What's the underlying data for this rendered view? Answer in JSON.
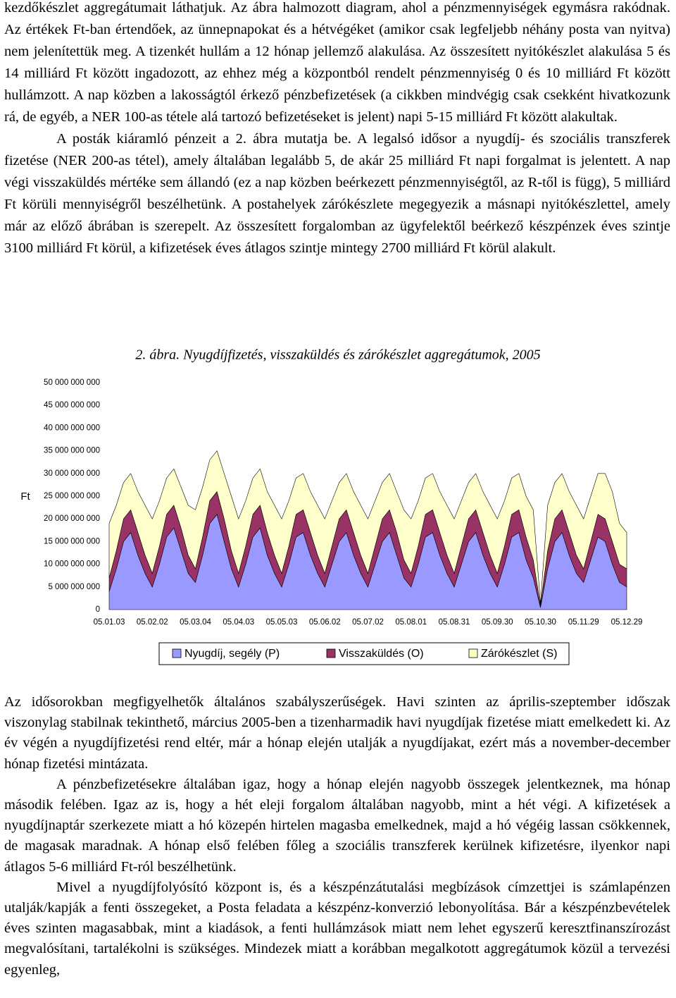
{
  "top_paragraphs": [
    "kezdőkészlet aggregátumait láthatjuk. Az ábra halmozott diagram, ahol a pénzmennyiségek egymásra rakódnak. Az értékek Ft-ban értendőek, az ünnepnapokat és a hétvégéket (amikor csak legfeljebb néhány posta van nyitva) nem jelenítettük meg. A tizenkét hullám a 12 hónap jellemző alakulása. Az összesített nyitókészlet alakulása 5 és 14 milliárd Ft között ingadozott, az ehhez még a központból rendelt pénzmennyiség 0 és 10 milliárd Ft között hullámzott. A nap közben a lakosságtól érkező pénzbefizetések (a cikkben mindvégig csak csekként hivatkozunk rá, de egyéb, a NER 100-as tétele alá tartozó befizetéseket is jelent) napi 5-15 milliárd Ft között alakultak.",
    "A posták kiáramló pénzeit a 2. ábra mutatja be. A legalsó idősor a nyugdíj- és szociális transzferek fizetése (NER 200-as tétel), amely általában legalább 5, de akár 25 milliárd Ft napi forgalmat is jelentett. A nap végi visszaküldés mértéke sem állandó (ez a nap közben beérkezett pénzmennyiségtől, az R-től is függ), 5 milliárd Ft körüli mennyiségről beszélhetünk. A postahelyek zárókészlete megegyezik a másnapi nyitókészlettel, amely már az előző ábrában is szerepelt. Az összesített forgalomban az ügyfelektől beérkező készpénzek éves szintje 3100 milliárd Ft körül, a kifizetések éves átlagos szintje mintegy 2700 milliárd Ft körül alakult."
  ],
  "chart_data": {
    "type": "stacked_area",
    "title": "2. ábra. Nyugdíjfizetés, visszaküldés és zárókészlet aggregátumok, 2005",
    "y_label": "Ft",
    "categories": [
      "05.01.03",
      null,
      null,
      null,
      null,
      null,
      "05.02.02",
      null,
      null,
      null,
      null,
      null,
      "05.03.04",
      null,
      null,
      null,
      null,
      null,
      "05.04.03",
      null,
      null,
      null,
      null,
      null,
      "05.05.03",
      null,
      null,
      null,
      null,
      null,
      "05.06.02",
      null,
      null,
      null,
      null,
      null,
      "05.07.02",
      null,
      null,
      null,
      null,
      null,
      "05.08.01",
      null,
      null,
      null,
      null,
      null,
      "05.08.31",
      null,
      null,
      null,
      null,
      null,
      "05.09.30",
      null,
      null,
      null,
      null,
      null,
      "05.10.30",
      null,
      null,
      null,
      null,
      null,
      "05.11.29",
      null,
      null,
      null,
      null,
      null,
      "05.12.29"
    ],
    "series": [
      {
        "name": "Nyugdíj, segély (P)",
        "color": "#9999ff",
        "values": [
          4000000000.0,
          9000000000.0,
          15000000000.0,
          17000000000.0,
          12000000000.0,
          8000000000.0,
          5000000000.0,
          10000000000.0,
          16000000000.0,
          18000000000.0,
          13000000000.0,
          8000000000.0,
          6000000000.0,
          12000000000.0,
          19000000000.0,
          21000000000.0,
          15000000000.0,
          9000000000.0,
          5000000000.0,
          10000000000.0,
          16000000000.0,
          18000000000.0,
          12000000000.0,
          8000000000.0,
          5000000000.0,
          10000000000.0,
          16000000000.0,
          17000000000.0,
          12000000000.0,
          8000000000.0,
          5000000000.0,
          10000000000.0,
          15000000000.0,
          17000000000.0,
          12000000000.0,
          8000000000.0,
          5000000000.0,
          10000000000.0,
          15000000000.0,
          17000000000.0,
          12000000000.0,
          7000000000.0,
          5000000000.0,
          10000000000.0,
          16000000000.0,
          17000000000.0,
          12000000000.0,
          8000000000.0,
          5000000000.0,
          10000000000.0,
          15000000000.0,
          17000000000.0,
          12000000000.0,
          8000000000.0,
          5000000000.0,
          10000000000.0,
          16000000000.0,
          17000000000.0,
          11000000000.0,
          7000000000.0,
          500000000.0,
          9000000000.0,
          15000000000.0,
          17000000000.0,
          12000000000.0,
          8000000000.0,
          6000000000.0,
          11000000000.0,
          16000000000.0,
          15000000000.0,
          10000000000.0,
          6000000000.0,
          5000000000.0
        ]
      },
      {
        "name": "Visszaküldés (O)",
        "color": "#993366",
        "values": [
          3000000000.0,
          4000000000.0,
          5000000000.0,
          5000000000.0,
          5000000000.0,
          4000000000.0,
          3000000000.0,
          4000000000.0,
          5000000000.0,
          5000000000.0,
          5000000000.0,
          4000000000.0,
          3000000000.0,
          4000000000.0,
          5000000000.0,
          5000000000.0,
          5000000000.0,
          4000000000.0,
          3000000000.0,
          4000000000.0,
          5000000000.0,
          5000000000.0,
          5000000000.0,
          4000000000.0,
          3000000000.0,
          4000000000.0,
          5000000000.0,
          5000000000.0,
          5000000000.0,
          4000000000.0,
          3000000000.0,
          4000000000.0,
          5000000000.0,
          5000000000.0,
          5000000000.0,
          4000000000.0,
          3000000000.0,
          4000000000.0,
          5000000000.0,
          5000000000.0,
          5000000000.0,
          4000000000.0,
          3000000000.0,
          4000000000.0,
          5000000000.0,
          5000000000.0,
          5000000000.0,
          4000000000.0,
          3000000000.0,
          4000000000.0,
          5000000000.0,
          5000000000.0,
          5000000000.0,
          4000000000.0,
          3000000000.0,
          4000000000.0,
          5000000000.0,
          5000000000.0,
          5000000000.0,
          4000000000.0,
          300000000.0,
          4000000000.0,
          5000000000.0,
          5000000000.0,
          5000000000.0,
          4000000000.0,
          3000000000.0,
          4000000000.0,
          5000000000.0,
          5000000000.0,
          5000000000.0,
          4000000000.0,
          4000000000.0
        ]
      },
      {
        "name": "Zárókészlet (S)",
        "color": "#ffffcc",
        "values": [
          12000000000.0,
          10000000000.0,
          8000000000.0,
          8000000000.0,
          9000000000.0,
          11000000000.0,
          12000000000.0,
          10000000000.0,
          8000000000.0,
          8000000000.0,
          9000000000.0,
          11000000000.0,
          13000000000.0,
          11000000000.0,
          9000000000.0,
          9000000000.0,
          10000000000.0,
          12000000000.0,
          12000000000.0,
          10000000000.0,
          8000000000.0,
          8000000000.0,
          9000000000.0,
          11000000000.0,
          12000000000.0,
          10000000000.0,
          8000000000.0,
          8000000000.0,
          9000000000.0,
          11000000000.0,
          12000000000.0,
          10000000000.0,
          8000000000.0,
          8000000000.0,
          9000000000.0,
          11000000000.0,
          12000000000.0,
          10000000000.0,
          8000000000.0,
          8000000000.0,
          9000000000.0,
          11000000000.0,
          12000000000.0,
          10000000000.0,
          8000000000.0,
          8000000000.0,
          9000000000.0,
          11000000000.0,
          12000000000.0,
          10000000000.0,
          8000000000.0,
          8000000000.0,
          9000000000.0,
          11000000000.0,
          12000000000.0,
          10000000000.0,
          8000000000.0,
          8000000000.0,
          9000000000.0,
          11000000000.0,
          500000000.0,
          10000000000.0,
          8000000000.0,
          8000000000.0,
          9000000000.0,
          11000000000.0,
          11000000000.0,
          10000000000.0,
          9000000000.0,
          10000000000.0,
          11000000000.0,
          9000000000.0,
          8000000000.0
        ]
      }
    ],
    "ylim": [
      0,
      50000000000
    ],
    "yticks": [
      0,
      {
        "value": 5000000000,
        "label": "5 000 000 000"
      },
      {
        "value": 10000000000,
        "label": "10 000 000 000"
      },
      {
        "value": 15000000000,
        "label": "15 000 000 000"
      },
      {
        "value": 20000000000,
        "label": "20 000 000 000"
      },
      {
        "value": 25000000000,
        "label": "25 000 000 000"
      },
      {
        "value": 30000000000,
        "label": "30 000 000 000"
      },
      {
        "value": 35000000000,
        "label": "35 000 000 000"
      },
      {
        "value": 40000000000,
        "label": "40 000 000 000"
      },
      {
        "value": 45000000000,
        "label": "45 000 000 000"
      },
      {
        "value": 50000000000,
        "label": "50 000 000 000"
      }
    ],
    "legend": "bottom"
  },
  "bottom_paragraphs": [
    "Az idősorokban megfigyelhetők általános szabályszerűségek. Havi szinten az április-szeptember időszak viszonylag stabilnak tekinthető, március 2005-ben a tizenharmadik havi nyugdíjak fizetése miatt emelkedett ki. Az év végén a nyugdíjfizetési rend eltér, már a hónap elején utalják a nyugdíjakat, ezért más a november-december hónap fizetési mintázata.",
    "A pénzbefizetésekre általában igaz, hogy a hónap elején nagyobb összegek jelentkeznek, ma hónap második felében. Igaz az is, hogy a hét eleji forgalom általában nagyobb, mint a hét végi. A kifizetések a nyugdíjnaptár szerkezete miatt a hó közepén hirtelen magasba emelkednek, majd a hó végéig lassan csökkennek, de magasak maradnak. A hónap első felében főleg a szociális transzferek kerülnek kifizetésre, ilyenkor napi átlagos 5-6 milliárd Ft-ról beszélhetünk.",
    "Mivel a nyugdíjfolyósító központ is, és a készpénzátutalási megbízások címzettjei is számlapénzen utalják/kapják a fenti összegeket, a Posta feladata a készpénz-konverzió lebonyolítása. Bár a készpénzbevételek éves szinten magasabbak, mint a kiadások, a fenti hullámzások miatt nem lehet egyszerű keresztfinanszírozást megvalósítani, tartalékolni is szükséges. Mindezek miatt a korábban megalkotott aggregátumok közül a tervezési egyenleg,"
  ]
}
